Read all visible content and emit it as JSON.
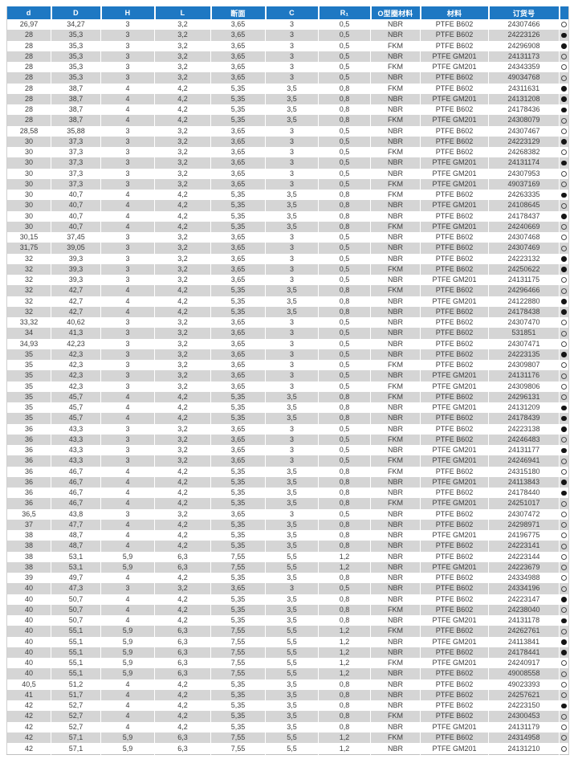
{
  "colors": {
    "header_bg": "#1e78c3",
    "header_text": "#ffffff",
    "row_bg": "#ffffff",
    "row_alt_bg": "#d5d5d5",
    "body_text": "#3d3d3d",
    "dot_color": "#151515"
  },
  "icons": {
    "filled": "filled-circle-icon",
    "open": "open-circle-icon"
  },
  "table": {
    "columns": [
      {
        "key": "d",
        "label": "d"
      },
      {
        "key": "D",
        "label": "D"
      },
      {
        "key": "H",
        "label": "H"
      },
      {
        "key": "L",
        "label": "L"
      },
      {
        "key": "cross_section",
        "label": "断面"
      },
      {
        "key": "C",
        "label": "C"
      },
      {
        "key": "R1",
        "label": "R₁"
      },
      {
        "key": "oring_material",
        "label": "O型圈材料"
      },
      {
        "key": "material",
        "label": "材料"
      },
      {
        "key": "order_no",
        "label": "订货号"
      },
      {
        "key": "availability",
        "label": ""
      }
    ],
    "rows": [
      [
        "26,97",
        "34,27",
        "3",
        "3,2",
        "3,65",
        "3",
        "0,5",
        "NBR",
        "PTFE B602",
        "24307466",
        "open"
      ],
      [
        "28",
        "35,3",
        "3",
        "3,2",
        "3,65",
        "3",
        "0,5",
        "NBR",
        "PTFE B602",
        "24223126",
        "filled"
      ],
      [
        "28",
        "35,3",
        "3",
        "3,2",
        "3,65",
        "3",
        "0,5",
        "FKM",
        "PTFE B602",
        "24296908",
        "filled"
      ],
      [
        "28",
        "35,3",
        "3",
        "3,2",
        "3,65",
        "3",
        "0,5",
        "NBR",
        "PTFE GM201",
        "24131173",
        "open"
      ],
      [
        "28",
        "35,3",
        "3",
        "3,2",
        "3,65",
        "3",
        "0,5",
        "FKM",
        "PTFE GM201",
        "24343359",
        "open"
      ],
      [
        "28",
        "35,3",
        "3",
        "3,2",
        "3,65",
        "3",
        "0,5",
        "NBR",
        "PTFE B602",
        "49034768",
        "open"
      ],
      [
        "28",
        "38,7",
        "4",
        "4,2",
        "5,35",
        "3,5",
        "0,8",
        "FKM",
        "PTFE B602",
        "24311631",
        "filled"
      ],
      [
        "28",
        "38,7",
        "4",
        "4,2",
        "5,35",
        "3,5",
        "0,8",
        "NBR",
        "PTFE GM201",
        "24131208",
        "filled"
      ],
      [
        "28",
        "38,7",
        "4",
        "4,2",
        "5,35",
        "3,5",
        "0,8",
        "NBR",
        "PTFE B602",
        "24178436",
        "filled"
      ],
      [
        "28",
        "38,7",
        "4",
        "4,2",
        "5,35",
        "3,5",
        "0,8",
        "FKM",
        "PTFE GM201",
        "24308079",
        "open"
      ],
      [
        "28,58",
        "35,88",
        "3",
        "3,2",
        "3,65",
        "3",
        "0,5",
        "NBR",
        "PTFE B602",
        "24307467",
        "open"
      ],
      [
        "30",
        "37,3",
        "3",
        "3,2",
        "3,65",
        "3",
        "0,5",
        "NBR",
        "PTFE B602",
        "24223129",
        "filled"
      ],
      [
        "30",
        "37,3",
        "3",
        "3,2",
        "3,65",
        "3",
        "0,5",
        "FKM",
        "PTFE B602",
        "24268382",
        "open"
      ],
      [
        "30",
        "37,3",
        "3",
        "3,2",
        "3,65",
        "3",
        "0,5",
        "NBR",
        "PTFE GM201",
        "24131174",
        "filled"
      ],
      [
        "30",
        "37,3",
        "3",
        "3,2",
        "3,65",
        "3",
        "0,5",
        "NBR",
        "PTFE GM201",
        "24307953",
        "open"
      ],
      [
        "30",
        "37,3",
        "3",
        "3,2",
        "3,65",
        "3",
        "0,5",
        "FKM",
        "PTFE GM201",
        "49037169",
        "open"
      ],
      [
        "30",
        "40,7",
        "4",
        "4,2",
        "5,35",
        "3,5",
        "0,8",
        "FKM",
        "PTFE B602",
        "24263335",
        "filled"
      ],
      [
        "30",
        "40,7",
        "4",
        "4,2",
        "5,35",
        "3,5",
        "0,8",
        "NBR",
        "PTFE GM201",
        "24108645",
        "open"
      ],
      [
        "30",
        "40,7",
        "4",
        "4,2",
        "5,35",
        "3,5",
        "0,8",
        "NBR",
        "PTFE B602",
        "24178437",
        "filled"
      ],
      [
        "30",
        "40,7",
        "4",
        "4,2",
        "5,35",
        "3,5",
        "0,8",
        "FKM",
        "PTFE GM201",
        "24240669",
        "open"
      ],
      [
        "30,15",
        "37,45",
        "3",
        "3,2",
        "3,65",
        "3",
        "0,5",
        "NBR",
        "PTFE B602",
        "24307468",
        "open"
      ],
      [
        "31,75",
        "39,05",
        "3",
        "3,2",
        "3,65",
        "3",
        "0,5",
        "NBR",
        "PTFE B602",
        "24307469",
        "open"
      ],
      [
        "32",
        "39,3",
        "3",
        "3,2",
        "3,65",
        "3",
        "0,5",
        "NBR",
        "PTFE B602",
        "24223132",
        "filled"
      ],
      [
        "32",
        "39,3",
        "3",
        "3,2",
        "3,65",
        "3",
        "0,5",
        "FKM",
        "PTFE B602",
        "24250622",
        "filled"
      ],
      [
        "32",
        "39,3",
        "3",
        "3,2",
        "3,65",
        "3",
        "0,5",
        "NBR",
        "PTFE GM201",
        "24131175",
        "open"
      ],
      [
        "32",
        "42,7",
        "4",
        "4,2",
        "5,35",
        "3,5",
        "0,8",
        "FKM",
        "PTFE B602",
        "24296466",
        "open"
      ],
      [
        "32",
        "42,7",
        "4",
        "4,2",
        "5,35",
        "3,5",
        "0,8",
        "NBR",
        "PTFE GM201",
        "24122880",
        "filled"
      ],
      [
        "32",
        "42,7",
        "4",
        "4,2",
        "5,35",
        "3,5",
        "0,8",
        "NBR",
        "PTFE B602",
        "24178438",
        "filled"
      ],
      [
        "33,32",
        "40,62",
        "3",
        "3,2",
        "3,65",
        "3",
        "0,5",
        "NBR",
        "PTFE B602",
        "24307470",
        "open"
      ],
      [
        "34",
        "41,3",
        "3",
        "3,2",
        "3,65",
        "3",
        "0,5",
        "NBR",
        "PTFE B602",
        "531851",
        "open"
      ],
      [
        "34,93",
        "42,23",
        "3",
        "3,2",
        "3,65",
        "3",
        "0,5",
        "NBR",
        "PTFE B602",
        "24307471",
        "open"
      ],
      [
        "35",
        "42,3",
        "3",
        "3,2",
        "3,65",
        "3",
        "0,5",
        "NBR",
        "PTFE B602",
        "24223135",
        "filled"
      ],
      [
        "35",
        "42,3",
        "3",
        "3,2",
        "3,65",
        "3",
        "0,5",
        "FKM",
        "PTFE B602",
        "24309807",
        "open"
      ],
      [
        "35",
        "42,3",
        "3",
        "3,2",
        "3,65",
        "3",
        "0,5",
        "NBR",
        "PTFE GM201",
        "24131176",
        "open"
      ],
      [
        "35",
        "42,3",
        "3",
        "3,2",
        "3,65",
        "3",
        "0,5",
        "FKM",
        "PTFE GM201",
        "24309806",
        "open"
      ],
      [
        "35",
        "45,7",
        "4",
        "4,2",
        "5,35",
        "3,5",
        "0,8",
        "FKM",
        "PTFE B602",
        "24296131",
        "open"
      ],
      [
        "35",
        "45,7",
        "4",
        "4,2",
        "5,35",
        "3,5",
        "0,8",
        "NBR",
        "PTFE GM201",
        "24131209",
        "filled"
      ],
      [
        "35",
        "45,7",
        "4",
        "4,2",
        "5,35",
        "3,5",
        "0,8",
        "NBR",
        "PTFE B602",
        "24178439",
        "filled"
      ],
      [
        "36",
        "43,3",
        "3",
        "3,2",
        "3,65",
        "3",
        "0,5",
        "NBR",
        "PTFE B602",
        "24223138",
        "filled"
      ],
      [
        "36",
        "43,3",
        "3",
        "3,2",
        "3,65",
        "3",
        "0,5",
        "FKM",
        "PTFE B602",
        "24246483",
        "open"
      ],
      [
        "36",
        "43,3",
        "3",
        "3,2",
        "3,65",
        "3",
        "0,5",
        "NBR",
        "PTFE GM201",
        "24131177",
        "filled"
      ],
      [
        "36",
        "43,3",
        "3",
        "3,2",
        "3,65",
        "3",
        "0,5",
        "FKM",
        "PTFE GM201",
        "24246941",
        "open"
      ],
      [
        "36",
        "46,7",
        "4",
        "4,2",
        "5,35",
        "3,5",
        "0,8",
        "FKM",
        "PTFE B602",
        "24315180",
        "open"
      ],
      [
        "36",
        "46,7",
        "4",
        "4,2",
        "5,35",
        "3,5",
        "0,8",
        "NBR",
        "PTFE GM201",
        "24113843",
        "filled"
      ],
      [
        "36",
        "46,7",
        "4",
        "4,2",
        "5,35",
        "3,5",
        "0,8",
        "NBR",
        "PTFE B602",
        "24178440",
        "filled"
      ],
      [
        "36",
        "46,7",
        "4",
        "4,2",
        "5,35",
        "3,5",
        "0,8",
        "FKM",
        "PTFE GM201",
        "24251017",
        "open"
      ],
      [
        "36,5",
        "43,8",
        "3",
        "3,2",
        "3,65",
        "3",
        "0,5",
        "NBR",
        "PTFE B602",
        "24307472",
        "open"
      ],
      [
        "37",
        "47,7",
        "4",
        "4,2",
        "5,35",
        "3,5",
        "0,8",
        "NBR",
        "PTFE B602",
        "24298971",
        "open"
      ],
      [
        "38",
        "48,7",
        "4",
        "4,2",
        "5,35",
        "3,5",
        "0,8",
        "NBR",
        "PTFE GM201",
        "24196775",
        "open"
      ],
      [
        "38",
        "48,7",
        "4",
        "4,2",
        "5,35",
        "3,5",
        "0,8",
        "NBR",
        "PTFE B602",
        "24223141",
        "open"
      ],
      [
        "38",
        "53,1",
        "5,9",
        "6,3",
        "7,55",
        "5,5",
        "1,2",
        "NBR",
        "PTFE B602",
        "24223144",
        "open"
      ],
      [
        "38",
        "53,1",
        "5,9",
        "6,3",
        "7,55",
        "5,5",
        "1,2",
        "NBR",
        "PTFE GM201",
        "24223679",
        "open"
      ],
      [
        "39",
        "49,7",
        "4",
        "4,2",
        "5,35",
        "3,5",
        "0,8",
        "NBR",
        "PTFE B602",
        "24334988",
        "open"
      ],
      [
        "40",
        "47,3",
        "3",
        "3,2",
        "3,65",
        "3",
        "0,5",
        "NBR",
        "PTFE B602",
        "24334196",
        "open"
      ],
      [
        "40",
        "50,7",
        "4",
        "4,2",
        "5,35",
        "3,5",
        "0,8",
        "NBR",
        "PTFE B602",
        "24223147",
        "filled"
      ],
      [
        "40",
        "50,7",
        "4",
        "4,2",
        "5,35",
        "3,5",
        "0,8",
        "FKM",
        "PTFE B602",
        "24238040",
        "open"
      ],
      [
        "40",
        "50,7",
        "4",
        "4,2",
        "5,35",
        "3,5",
        "0,8",
        "NBR",
        "PTFE GM201",
        "24131178",
        "filled"
      ],
      [
        "40",
        "55,1",
        "5,9",
        "6,3",
        "7,55",
        "5,5",
        "1,2",
        "FKM",
        "PTFE B602",
        "24262761",
        "open"
      ],
      [
        "40",
        "55,1",
        "5,9",
        "6,3",
        "7,55",
        "5,5",
        "1,2",
        "NBR",
        "PTFE GM201",
        "24113841",
        "filled"
      ],
      [
        "40",
        "55,1",
        "5,9",
        "6,3",
        "7,55",
        "5,5",
        "1,2",
        "NBR",
        "PTFE B602",
        "24178441",
        "filled"
      ],
      [
        "40",
        "55,1",
        "5,9",
        "6,3",
        "7,55",
        "5,5",
        "1,2",
        "FKM",
        "PTFE GM201",
        "24240917",
        "open"
      ],
      [
        "40",
        "55,1",
        "5,9",
        "6,3",
        "7,55",
        "5,5",
        "1,2",
        "NBR",
        "PTFE B602",
        "49008558",
        "open"
      ],
      [
        "40,5",
        "51,2",
        "4",
        "4,2",
        "5,35",
        "3,5",
        "0,8",
        "NBR",
        "PTFE B602",
        "49023393",
        "open"
      ],
      [
        "41",
        "51,7",
        "4",
        "4,2",
        "5,35",
        "3,5",
        "0,8",
        "NBR",
        "PTFE B602",
        "24257621",
        "open"
      ],
      [
        "42",
        "52,7",
        "4",
        "4,2",
        "5,35",
        "3,5",
        "0,8",
        "NBR",
        "PTFE B602",
        "24223150",
        "filled"
      ],
      [
        "42",
        "52,7",
        "4",
        "4,2",
        "5,35",
        "3,5",
        "0,8",
        "FKM",
        "PTFE B602",
        "24300453",
        "open"
      ],
      [
        "42",
        "52,7",
        "4",
        "4,2",
        "5,35",
        "3,5",
        "0,8",
        "NBR",
        "PTFE GM201",
        "24131179",
        "open"
      ],
      [
        "42",
        "57,1",
        "5,9",
        "6,3",
        "7,55",
        "5,5",
        "1,2",
        "FKM",
        "PTFE B602",
        "24314958",
        "open"
      ],
      [
        "42",
        "57,1",
        "5,9",
        "6,3",
        "7,55",
        "5,5",
        "1,2",
        "NBR",
        "PTFE GM201",
        "24131210",
        "open"
      ]
    ]
  }
}
